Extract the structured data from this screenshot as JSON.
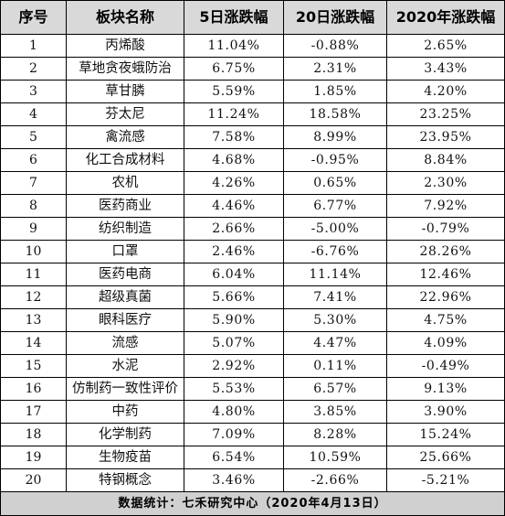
{
  "table": {
    "headers": [
      "序号",
      "板块名称",
      "5日涨跌幅",
      "20日涨跌幅",
      "2020年涨跌幅"
    ],
    "rows": [
      [
        "1",
        "丙烯酸",
        "11.04%",
        "-0.88%",
        "2.65%"
      ],
      [
        "2",
        "草地贪夜蛾防治",
        "6.75%",
        "2.31%",
        "3.43%"
      ],
      [
        "3",
        "草甘膦",
        "5.59%",
        "1.85%",
        "4.20%"
      ],
      [
        "4",
        "芬太尼",
        "11.24%",
        "18.58%",
        "23.25%"
      ],
      [
        "5",
        "禽流感",
        "7.58%",
        "8.99%",
        "23.95%"
      ],
      [
        "6",
        "化工合成材料",
        "4.68%",
        "-0.95%",
        "8.84%"
      ],
      [
        "7",
        "农机",
        "4.26%",
        "0.65%",
        "2.30%"
      ],
      [
        "8",
        "医药商业",
        "4.46%",
        "6.77%",
        "7.92%"
      ],
      [
        "9",
        "纺织制造",
        "2.66%",
        "-5.00%",
        "-0.79%"
      ],
      [
        "10",
        "口罩",
        "2.46%",
        "-6.76%",
        "28.26%"
      ],
      [
        "11",
        "医药电商",
        "6.04%",
        "11.14%",
        "12.46%"
      ],
      [
        "12",
        "超级真菌",
        "5.66%",
        "7.41%",
        "22.96%"
      ],
      [
        "13",
        "眼科医疗",
        "5.90%",
        "5.30%",
        "4.75%"
      ],
      [
        "14",
        "流感",
        "5.07%",
        "4.47%",
        "4.09%"
      ],
      [
        "15",
        "水泥",
        "2.92%",
        "0.11%",
        "-0.49%"
      ],
      [
        "16",
        "仿制药一致性评价",
        "5.53%",
        "6.57%",
        "9.13%"
      ],
      [
        "17",
        "中药",
        "4.80%",
        "3.85%",
        "3.90%"
      ],
      [
        "18",
        "化学制药",
        "7.09%",
        "8.28%",
        "15.24%"
      ],
      [
        "19",
        "生物疫苗",
        "6.54%",
        "10.59%",
        "25.66%"
      ],
      [
        "20",
        "特钢概念",
        "3.46%",
        "-2.66%",
        "-5.21%"
      ]
    ],
    "footer": "数据统计：七禾研究中心（2020年4月13日）"
  }
}
